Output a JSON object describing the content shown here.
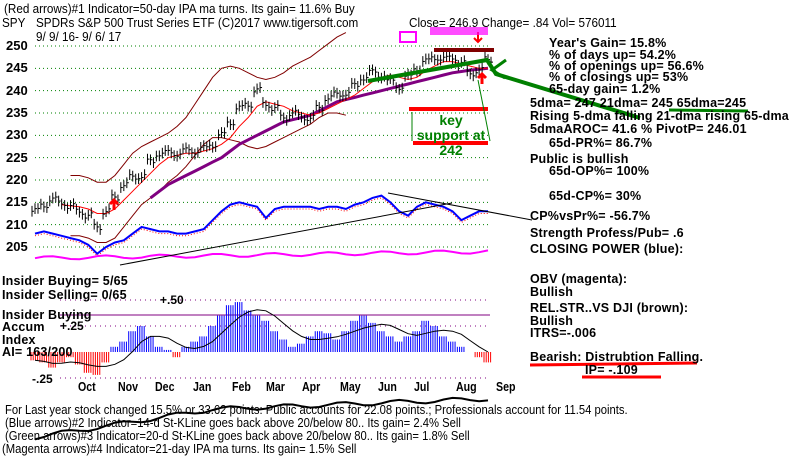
{
  "header": {
    "line1": "(Red arrows)#1 Indicator=50-day IPA ma turns. Its gain= 11.6% Buy",
    "ticker": "SPY",
    "name": "SPDRs S&P 500 Trust Series ETF  (C)2017 www.tigersoft.com",
    "close": "Close=  246.9  Change= .84 Vol= 576011",
    "date_range": "9/ 9/ 16- 9/ 6/ 17"
  },
  "stats": {
    "years_gain": "Year's Gain= 15.8%",
    "days_up": "% of days up= 54.2%",
    "openings_up": "% of openings up= 56.6%",
    "closings_up": "% of closings up= 53%",
    "gain_65d": "65-day gain= 1.2%",
    "dma": "5dma= 247 21dma= 245 65dma=245",
    "rising": "Rising 5-dma  falling 21-dma  rising 65-dma",
    "aroc": "5dmaAROC= 41.6 %  PivotP= 246.01",
    "pr65": "65d-PR%= 86.7%",
    "public": "Public is bullish",
    "op65": "65d-OP%= 100%",
    "cp65": "65d-CP%= 30%",
    "cpvspr": "CP%vsPr%= -56.7%",
    "strength": "Strength Profess/Pub= .6",
    "closing_power": "CLOSING POWER (blue):",
    "obv": "OBV (magenta):",
    "obv_status": "Bullish",
    "relstr": "REL.STR..VS DJI (brown):",
    "relstr_status": "Bullish",
    "itrs": "ITRS=-.006",
    "bearish": "Bearish: Distrubtion Falling.",
    "ip": "IP= -.109"
  },
  "insider": {
    "buying": "Insider Buying= 5/65",
    "selling": "Insider Selling= 0/65",
    "panel1": "Insider Buying",
    "panel2": "Accum",
    "panel3": "Index",
    "ai": "AI= 163/200"
  },
  "annotation": {
    "support_line1": "key support at",
    "support_line2": "242"
  },
  "footer": {
    "line1": "For Last year stock changed  15.5% or  33.62 points:  Public accounts for  22.08 points.;  Professionals account for  11.54 points.",
    "line2": "(Blue arrows)#2 Indicator=14-d St-KLine goes back above 20/below 80.. Its gain= 2.4% Sell",
    "line3": "(Green arrows)#3 Indicator=20-d St-KLine goes back above 20/below 80.. Its gain= 1.8% Sell",
    "line4": "(Magenta arrows)#4 Indicator=21-day IPA ma turns. Its gain= 1.5% Sell"
  },
  "colors": {
    "price": "#000000",
    "ma21": "#ff0000",
    "ma65": "#800080",
    "band": "#800000",
    "cp": "#0000ff",
    "obv": "#ff00ff",
    "support": "#008000",
    "alert": "#ff0000"
  },
  "chart_data": {
    "type": "line",
    "title": "SPY SPDRs S&P 500 Trust Series ETF",
    "x_unit": "week index from 9/9/16",
    "yticks": [
      "250",
      "245",
      "240",
      "235",
      "230",
      "225",
      "220",
      "215",
      "210",
      "205"
    ],
    "ylim": [
      205,
      250
    ],
    "months": [
      "Oct",
      "Nov",
      "Dec",
      "Jan",
      "Feb",
      "Mar",
      "Apr",
      "May",
      "Jun",
      "Jul",
      "Aug",
      "Sep"
    ],
    "price": [
      213,
      214.5,
      215.5,
      215,
      214,
      213,
      212,
      209.5,
      213,
      216,
      219,
      220.5,
      221,
      224,
      226,
      226,
      226,
      226.5,
      226.5,
      227,
      228,
      230,
      233,
      236,
      237,
      240,
      237,
      236,
      234,
      235,
      234,
      234,
      236,
      238.5,
      239,
      239.5,
      241,
      243,
      244,
      243.5,
      242,
      241,
      243,
      245,
      246.5,
      247.5,
      247,
      247.5,
      246,
      244,
      244.5,
      247
    ],
    "ma21": [
      null,
      null,
      null,
      214.5,
      214.2,
      214,
      213.5,
      212.5,
      212.5,
      213.5,
      215.5,
      217.5,
      219.5,
      221.5,
      223.5,
      225,
      225.5,
      226,
      226,
      226.5,
      227,
      228,
      229.5,
      232,
      234,
      236.5,
      237.5,
      237,
      236.5,
      235.5,
      235,
      234.5,
      235,
      236,
      237,
      238,
      239,
      240.5,
      242,
      243,
      243.5,
      243,
      242.5,
      243,
      244.5,
      245.5,
      246.5,
      246.5,
      246,
      245.5,
      245,
      245
    ],
    "ma65": [
      null,
      null,
      null,
      null,
      null,
      null,
      null,
      null,
      null,
      null,
      null,
      null,
      null,
      216,
      217.5,
      219,
      220,
      221,
      222,
      223,
      224,
      225,
      226.5,
      228,
      229,
      230,
      231,
      232,
      233,
      233.5,
      234,
      234.5,
      235.5,
      236.5,
      237.5,
      238,
      238.5,
      239,
      239.5,
      240,
      240.5,
      241,
      241.5,
      242,
      242.5,
      243,
      243.5,
      244,
      244.3,
      244.6,
      244.8,
      245
    ],
    "upper_band": [
      null,
      null,
      null,
      null,
      221,
      221,
      220.5,
      219.5,
      219.5,
      221,
      223.5,
      226,
      227.5,
      228.5,
      229.5,
      230.5,
      232,
      234,
      237,
      240,
      243,
      245,
      245.5,
      245,
      244,
      243,
      242.5,
      243,
      244,
      245.5,
      246.5,
      247.5,
      249,
      250.5,
      252,
      253,
      null,
      null,
      null,
      null,
      null,
      null,
      null,
      null,
      null,
      null,
      null,
      null,
      null,
      null,
      null,
      null
    ],
    "lower_band": [
      null,
      null,
      null,
      null,
      207.5,
      207.5,
      207,
      206,
      206,
      207,
      209.5,
      212,
      214.5,
      216,
      217.5,
      219.5,
      221,
      223,
      225.5,
      228,
      229.5,
      229.5,
      229,
      228.5,
      227.5,
      227,
      227.5,
      228.5,
      229.5,
      230.5,
      231.5,
      232.5,
      234,
      235,
      235,
      234.5,
      null,
      null,
      null,
      null,
      null,
      null,
      null,
      null,
      null,
      null,
      null,
      null,
      null,
      null,
      null,
      null
    ],
    "closing_power": [
      208,
      208.5,
      208,
      207.5,
      207,
      206.5,
      205.5,
      203.5,
      205,
      206,
      206.5,
      208,
      209.5,
      209,
      208.5,
      208.5,
      208,
      208,
      208.5,
      209,
      211,
      213,
      214.5,
      215,
      214.5,
      214,
      211.5,
      213.5,
      214,
      214,
      214,
      214,
      213.5,
      214,
      214,
      213.5,
      214.5,
      215,
      216,
      216.5,
      215,
      213,
      212,
      214,
      215,
      214.5,
      214,
      213,
      211,
      212,
      213,
      213
    ],
    "accum_index": [
      -0.08,
      -0.1,
      -0.15,
      -0.1,
      -0.05,
      -0.12,
      -0.2,
      -0.22,
      -0.1,
      0.05,
      0.1,
      0.2,
      0.25,
      0.15,
      0.05,
      0.02,
      -0.05,
      0.05,
      0.1,
      0.15,
      0.25,
      0.35,
      0.45,
      0.48,
      0.4,
      0.35,
      0.3,
      0.2,
      0.12,
      0.05,
      0.08,
      0.15,
      0.2,
      0.18,
      0.12,
      0.2,
      0.3,
      0.35,
      0.28,
      0.2,
      0.15,
      0.1,
      0.15,
      0.2,
      0.3,
      0.25,
      0.15,
      0.1,
      0.05,
      0.0,
      -0.05,
      -0.1
    ],
    "accum_ticks": [
      "+.50",
      "+.25",
      "-.25"
    ]
  }
}
